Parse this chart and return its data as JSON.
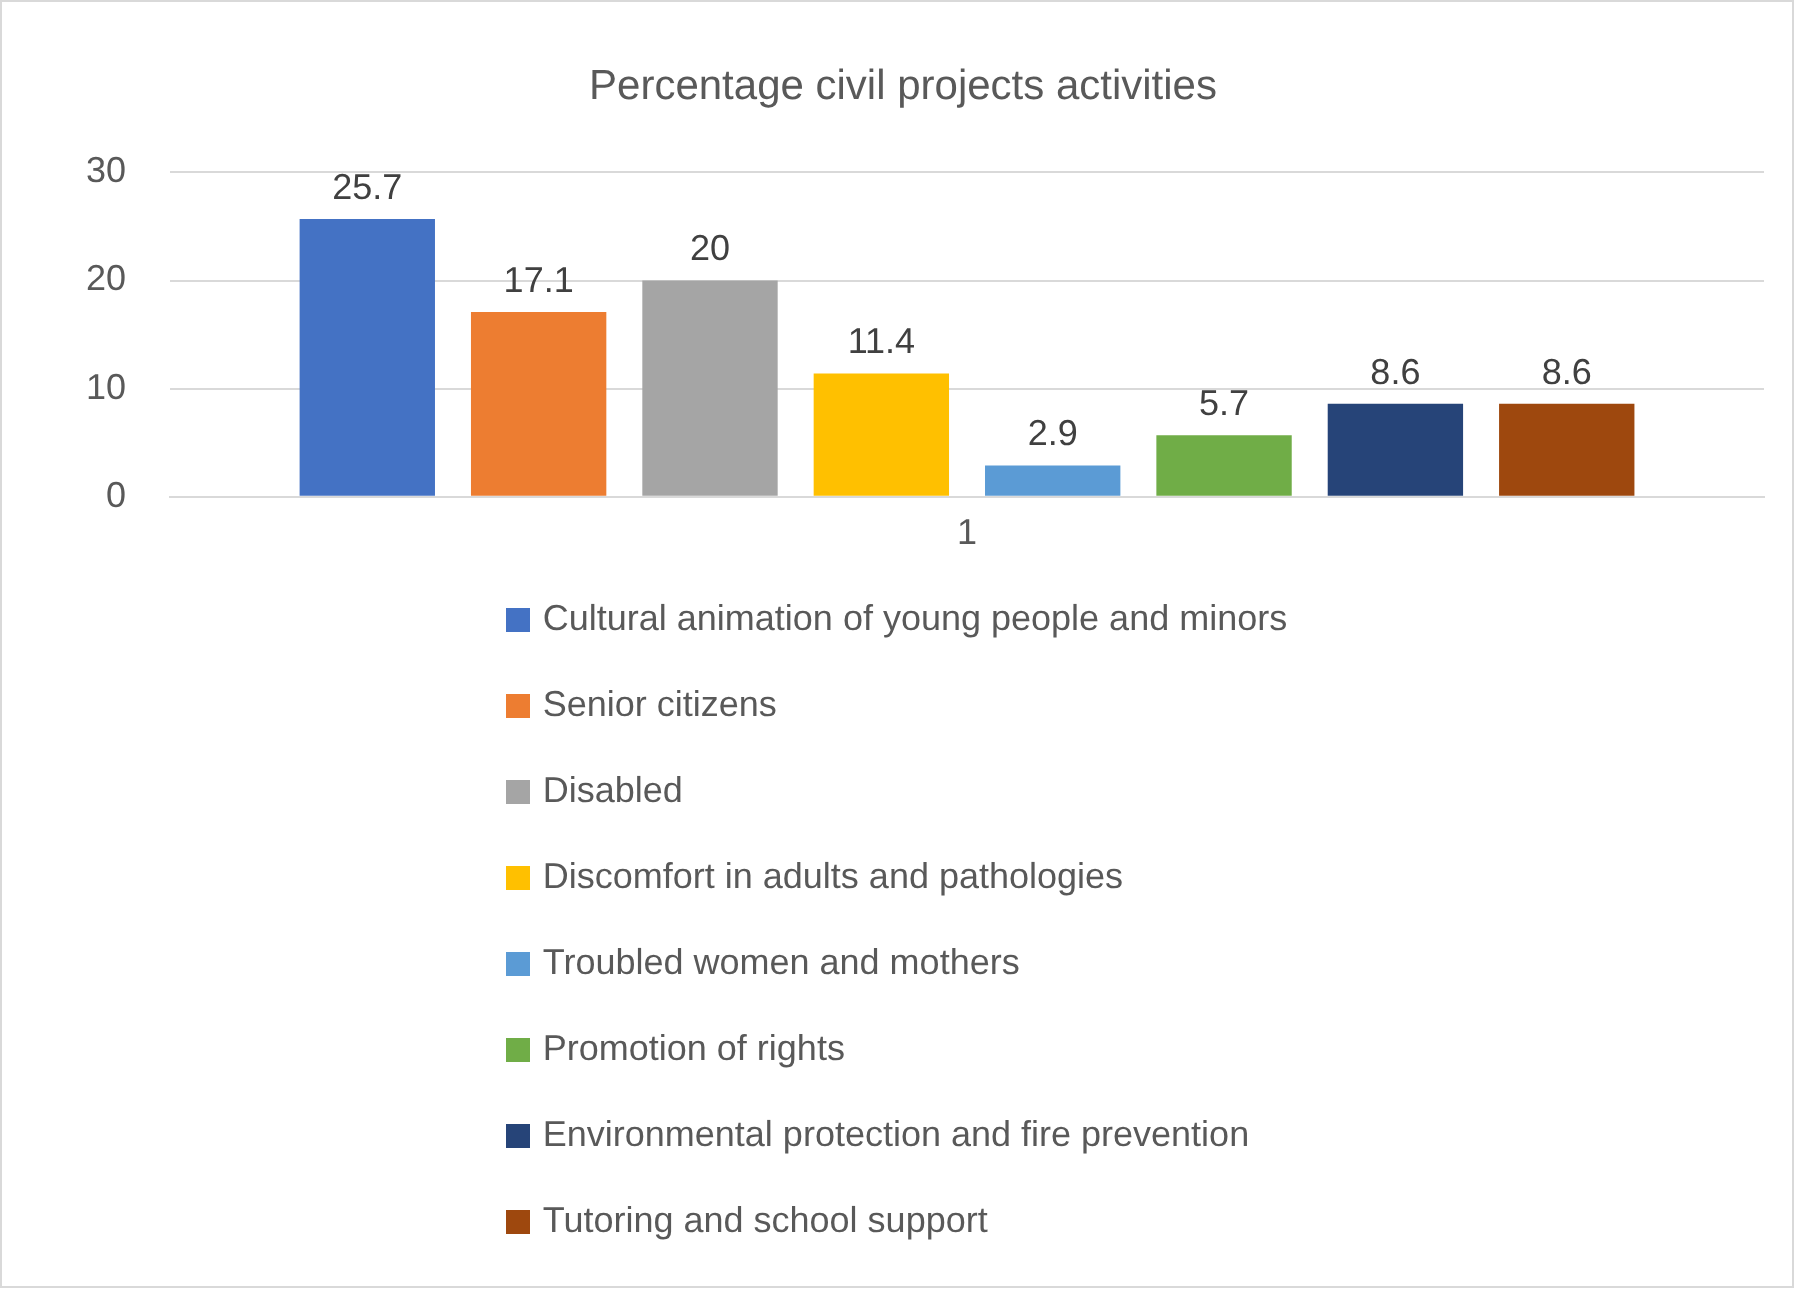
{
  "chart_data": {
    "type": "bar",
    "title": "Percentage civil projects activities",
    "categories": [
      "1"
    ],
    "series": [
      {
        "name": "Cultural animation of young people and minors",
        "color": "#4472c4",
        "values": [
          25.7
        ]
      },
      {
        "name": "Senior citizens",
        "color": "#ed7d31",
        "values": [
          17.1
        ]
      },
      {
        "name": "Disabled",
        "color": "#a5a5a5",
        "values": [
          20
        ]
      },
      {
        "name": "Discomfort in adults and pathologies",
        "color": "#ffc000",
        "values": [
          11.4
        ]
      },
      {
        "name": "Troubled women and mothers",
        "color": "#5b9bd5",
        "values": [
          2.9
        ]
      },
      {
        "name": "Promotion of rights",
        "color": "#70ad47",
        "values": [
          5.7
        ]
      },
      {
        "name": "Environmental protection and fire prevention",
        "color": "#264478",
        "values": [
          8.6
        ]
      },
      {
        "name": "Tutoring and school support",
        "color": "#9e480e",
        "values": [
          8.6
        ]
      }
    ],
    "ylim": [
      0,
      30
    ],
    "yticks": [
      0,
      10,
      20,
      30
    ],
    "grid": "y",
    "legend": "bottom",
    "data_labels": true
  }
}
